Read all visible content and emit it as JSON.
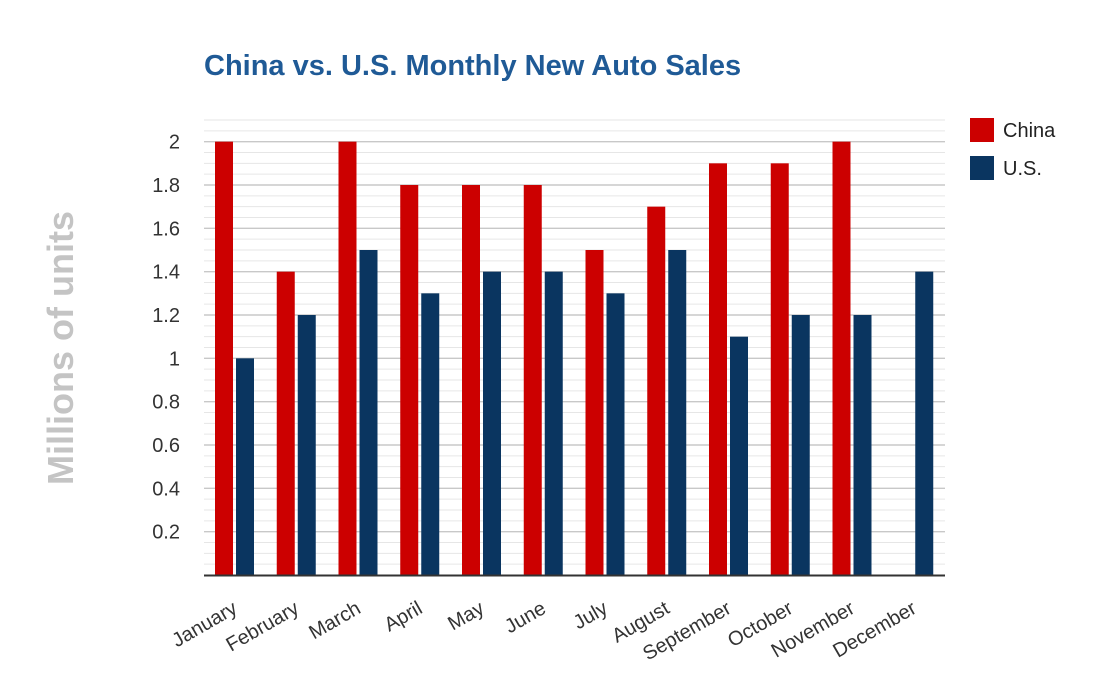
{
  "chart_data": {
    "type": "bar",
    "title": "China vs. U.S. Monthly New Auto Sales",
    "xlabel": "",
    "ylabel": "Millions of units",
    "categories": [
      "January",
      "February",
      "March",
      "April",
      "May",
      "June",
      "July",
      "August",
      "September",
      "October",
      "November",
      "December"
    ],
    "series": [
      {
        "name": "China",
        "color": "#cc0000",
        "values": [
          2.0,
          1.4,
          2.0,
          1.8,
          1.8,
          1.8,
          1.5,
          1.7,
          1.9,
          1.9,
          2.0,
          null
        ]
      },
      {
        "name": "U.S.",
        "color": "#0a3560",
        "values": [
          1.0,
          1.2,
          1.5,
          1.3,
          1.4,
          1.4,
          1.3,
          1.5,
          1.1,
          1.2,
          1.2,
          1.4
        ]
      }
    ],
    "ylim": [
      0,
      2.1
    ],
    "yticks": [
      0.2,
      0.4,
      0.6,
      0.8,
      1,
      1.2,
      1.4,
      1.6,
      1.8,
      2
    ],
    "ytick_labels": [
      "0.2",
      "0.4",
      "0.6",
      "0.8",
      "1",
      "1.2",
      "1.4",
      "1.6",
      "1.8",
      "2"
    ],
    "grid": true,
    "legend_position": "top-right"
  }
}
